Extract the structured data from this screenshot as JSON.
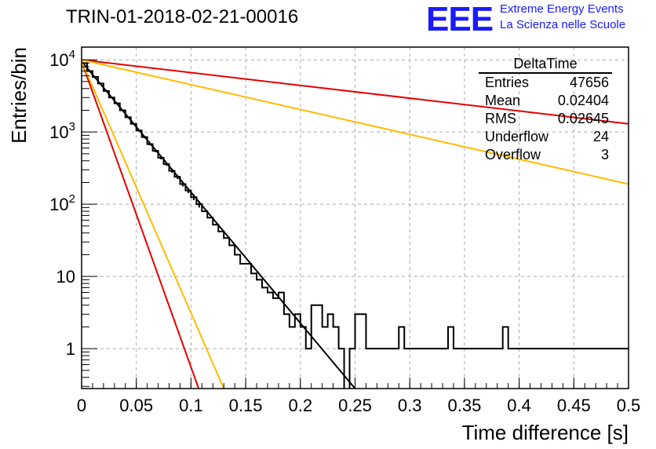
{
  "header": {
    "run_title": "TRIN-01-2018-02-21-00016",
    "logo": {
      "text": "EEE",
      "line1": "Extreme Energy Events",
      "line2": "La Scienza nelle Scuole",
      "color": "#1a1aff"
    }
  },
  "stats_box": {
    "title": "DeltaTime",
    "rows": [
      {
        "label": "Entries",
        "value": "47656"
      },
      {
        "label": "Mean",
        "value": "0.02404"
      },
      {
        "label": "RMS",
        "value": "0.02645"
      },
      {
        "label": "Underflow",
        "value": "24"
      },
      {
        "label": "Overflow",
        "value": "3"
      }
    ]
  },
  "chart_data": {
    "type": "line",
    "xlabel": "Time difference [s]",
    "ylabel": "Entries/bin",
    "xlim": [
      0,
      0.5
    ],
    "ylim": [
      0.28,
      15000
    ],
    "yscale": "log",
    "grid": true,
    "x_ticks": [
      "0",
      "0.05",
      "0.1",
      "0.15",
      "0.2",
      "0.25",
      "0.3",
      "0.35",
      "0.4",
      "0.45",
      "0.5"
    ],
    "y_ticks": [
      {
        "label": "10^4",
        "value": 10000
      },
      {
        "label": "10^3",
        "value": 1000
      },
      {
        "label": "10^2",
        "value": 100
      },
      {
        "label": "10",
        "value": 10
      },
      {
        "label": "1",
        "value": 1
      }
    ],
    "histogram": {
      "color": "#000000",
      "bin_width": 0.005,
      "values": [
        9000,
        7000,
        5800,
        4700,
        3700,
        3000,
        2500,
        2000,
        1600,
        1300,
        1050,
        850,
        680,
        550,
        440,
        360,
        290,
        240,
        190,
        155,
        125,
        100,
        80,
        65,
        52,
        42,
        34,
        27,
        20,
        15,
        15,
        11,
        9,
        7,
        6,
        5,
        6,
        3,
        2,
        3,
        2,
        1,
        4,
        4,
        2,
        3,
        2,
        1,
        0,
        1,
        3,
        3,
        1,
        1,
        1,
        1,
        1,
        1,
        2,
        1,
        1,
        1,
        1,
        1,
        1,
        1,
        1,
        2,
        1,
        1,
        1,
        1,
        1,
        1,
        1,
        1,
        1,
        2,
        1,
        1,
        1,
        1,
        1,
        1,
        1,
        1,
        1,
        1,
        1,
        1,
        1,
        1,
        1,
        1,
        1,
        1,
        1,
        1,
        1,
        1
      ]
    },
    "fits": [
      {
        "color": "#000000",
        "points": [
          [
            0,
            9500
          ],
          [
            0.25,
            0.28
          ]
        ]
      },
      {
        "color": "#e60000",
        "points": [
          [
            0,
            9500
          ],
          [
            0.107,
            0.28
          ]
        ]
      },
      {
        "color": "#ffbb00",
        "points": [
          [
            0,
            9500
          ],
          [
            0.13,
            0.28
          ]
        ]
      },
      {
        "color": "#e60000",
        "points": [
          [
            0,
            10000
          ],
          [
            0.5,
            1300
          ]
        ]
      },
      {
        "color": "#ffbb00",
        "points": [
          [
            0,
            10000
          ],
          [
            0.5,
            190
          ]
        ]
      }
    ]
  }
}
